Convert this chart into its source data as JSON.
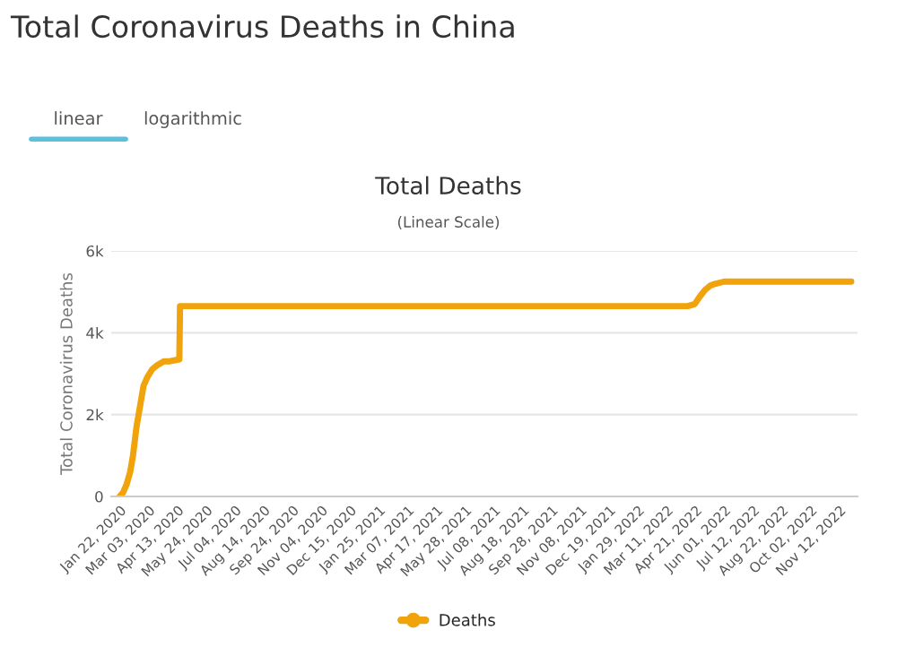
{
  "chart_data": {
    "type": "line",
    "title": "Total Coronavirus Deaths in China",
    "subtitle": "Total Deaths",
    "ylabel": "Total Coronavirus Deaths",
    "annotations": [
      "linear",
      "logarithmic",
      "(Linear Scale)"
    ],
    "x": [
      "2020-01-22",
      "2020-01-27",
      "2020-02-01",
      "2020-02-06",
      "2020-02-10",
      "2020-02-15",
      "2020-02-20",
      "2020-02-25",
      "2020-03-01",
      "2020-03-08",
      "2020-03-15",
      "2020-03-25",
      "2020-04-01",
      "2020-04-16",
      "2020-04-17",
      "2021-06-01",
      "2022-01-01",
      "2022-04-10",
      "2022-04-20",
      "2022-04-28",
      "2022-05-05",
      "2022-05-12",
      "2022-05-20",
      "2022-06-01",
      "2022-11-29"
    ],
    "series": [
      {
        "name": "Deaths",
        "color": "#f0a30a",
        "values": [
          0,
          100,
          300,
          600,
          1000,
          1700,
          2200,
          2700,
          2900,
          3100,
          3200,
          3300,
          3300,
          3350,
          4650,
          4650,
          4650,
          4650,
          4700,
          4900,
          5050,
          5150,
          5200,
          5250,
          5250
        ]
      }
    ],
    "xlim": [
      "2020-01-10",
      "2022-12-08"
    ],
    "xticks": [
      {
        "value": "2020-01-22",
        "label": "Jan 22, 2020"
      },
      {
        "value": "2020-03-03",
        "label": "Mar 03, 2020"
      },
      {
        "value": "2020-04-13",
        "label": "Apr 13, 2020"
      },
      {
        "value": "2020-05-24",
        "label": "May 24, 2020"
      },
      {
        "value": "2020-07-04",
        "label": "Jul 04, 2020"
      },
      {
        "value": "2020-08-14",
        "label": "Aug 14, 2020"
      },
      {
        "value": "2020-09-24",
        "label": "Sep 24, 2020"
      },
      {
        "value": "2020-11-04",
        "label": "Nov 04, 2020"
      },
      {
        "value": "2020-12-15",
        "label": "Dec 15, 2020"
      },
      {
        "value": "2021-01-25",
        "label": "Jan 25, 2021"
      },
      {
        "value": "2021-03-07",
        "label": "Mar 07, 2021"
      },
      {
        "value": "2021-04-17",
        "label": "Apr 17, 2021"
      },
      {
        "value": "2021-05-28",
        "label": "May 28, 2021"
      },
      {
        "value": "2021-07-08",
        "label": "Jul 08, 2021"
      },
      {
        "value": "2021-08-18",
        "label": "Aug 18, 2021"
      },
      {
        "value": "2021-09-28",
        "label": "Sep 28, 2021"
      },
      {
        "value": "2021-11-08",
        "label": "Nov 08, 2021"
      },
      {
        "value": "2021-12-19",
        "label": "Dec 19, 2021"
      },
      {
        "value": "2022-01-29",
        "label": "Jan 29, 2022"
      },
      {
        "value": "2022-03-11",
        "label": "Mar 11, 2022"
      },
      {
        "value": "2022-04-21",
        "label": "Apr 21, 2022"
      },
      {
        "value": "2022-06-01",
        "label": "Jun 01, 2022"
      },
      {
        "value": "2022-07-12",
        "label": "Jul 12, 2022"
      },
      {
        "value": "2022-08-22",
        "label": "Aug 22, 2022"
      },
      {
        "value": "2022-10-02",
        "label": "Oct 02, 2022"
      },
      {
        "value": "2022-11-12",
        "label": "Nov 12, 2022"
      }
    ],
    "ylim": [
      0,
      6000
    ],
    "yticks": [
      {
        "value": 0,
        "label": "0"
      },
      {
        "value": 2000,
        "label": "2k"
      },
      {
        "value": 4000,
        "label": "4k"
      },
      {
        "value": 6000,
        "label": "6k"
      }
    ],
    "grid": "y",
    "legend": "bottom",
    "marker": "none",
    "line_style": "solid"
  }
}
